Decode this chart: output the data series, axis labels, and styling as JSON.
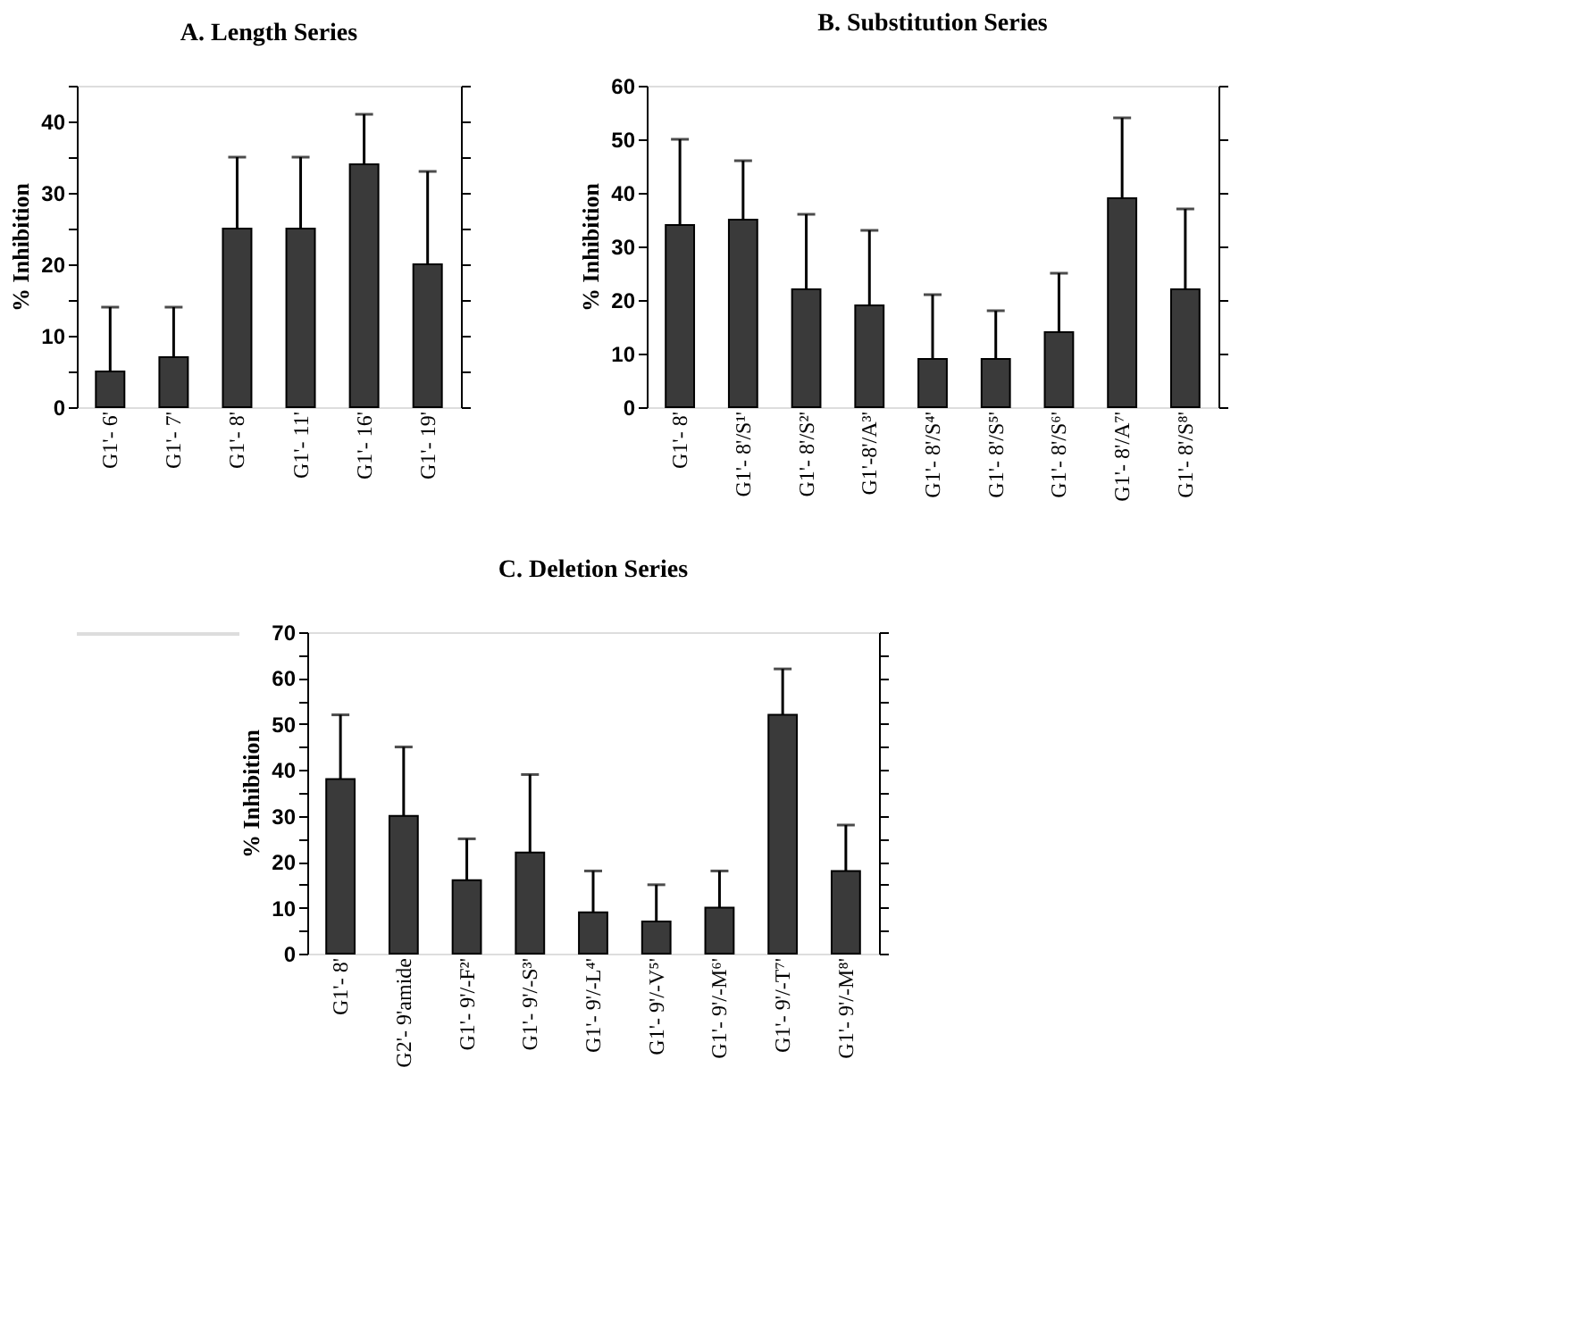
{
  "chart_data": [
    {
      "type": "bar",
      "title": "A.  Length Series",
      "ylabel": "% Inhibition",
      "categories": [
        "G1'- 6'",
        "G1'- 7'",
        "G1'- 8'",
        "G1'- 11'",
        "G1'- 16'",
        "G1'- 19'"
      ],
      "values": [
        5,
        7,
        25,
        25,
        34,
        20
      ],
      "color": "#3a3a3a",
      "errors": [
        [
          5,
          14
        ],
        [
          7,
          14
        ],
        [
          25,
          35
        ],
        [
          25,
          35
        ],
        [
          34,
          41
        ],
        [
          20,
          33
        ]
      ],
      "ylim": [
        0,
        45
      ],
      "yticks": [
        0,
        {
          "value": 5,
          "label": null
        },
        10,
        {
          "value": 15,
          "label": null
        },
        20,
        {
          "value": 25,
          "label": null
        },
        30,
        {
          "value": 35,
          "label": null
        },
        40,
        {
          "value": 45,
          "label": null
        }
      ],
      "grid": false
    },
    {
      "type": "bar",
      "title": "B.  Substitution Series",
      "ylabel": "% Inhibition",
      "categories": [
        "G1'- 8'",
        "G1'- 8'/S¹'",
        "G1'- 8'/S²'",
        "G1'-8'/A³'",
        "G1'- 8'/S⁴'",
        "G1'- 8'/S⁵'",
        "G1'- 8'/S⁶'",
        "G1'- 8'/A⁷'",
        "G1'- 8'/S⁸'"
      ],
      "values": [
        34,
        35,
        22,
        19,
        9,
        9,
        14,
        39,
        22
      ],
      "color": "#3a3a3a",
      "errors": [
        [
          34,
          50
        ],
        [
          35,
          46
        ],
        [
          22,
          36
        ],
        [
          19,
          33
        ],
        [
          9,
          21
        ],
        [
          9,
          18
        ],
        [
          14,
          25
        ],
        [
          39,
          54
        ],
        [
          22,
          37
        ]
      ],
      "ylim": [
        0,
        60
      ],
      "yticks": [
        0,
        10,
        20,
        30,
        40,
        50,
        60
      ],
      "grid": false
    },
    {
      "type": "bar",
      "title": "C.  Deletion Series",
      "ylabel": "% Inhibition",
      "categories": [
        "G1'- 8'",
        "G2'- 9'amide",
        "G1'- 9'/-F²'",
        "G1'- 9'/-S³'",
        "G1'- 9'/-L⁴'",
        "G1'- 9'/-V⁵'",
        "G1'- 9'/-M⁶'",
        "G1'- 9'/-T⁷'",
        "G1'- 9'/-M⁸'"
      ],
      "values": [
        38,
        30,
        16,
        22,
        9,
        7,
        10,
        52,
        18
      ],
      "color": "#3a3a3a",
      "errors": [
        [
          38,
          52
        ],
        [
          30,
          45
        ],
        [
          16,
          25
        ],
        [
          22,
          39
        ],
        [
          9,
          18
        ],
        [
          7,
          15
        ],
        [
          10,
          18
        ],
        [
          52,
          62
        ],
        [
          18,
          28
        ]
      ],
      "ylim": [
        0,
        70
      ],
      "yticks": [
        0,
        {
          "value": 5,
          "label": null
        },
        10,
        {
          "value": 15,
          "label": null
        },
        20,
        {
          "value": 25,
          "label": null
        },
        30,
        {
          "value": 35,
          "label": null
        },
        40,
        {
          "value": 45,
          "label": null
        },
        50,
        {
          "value": 55,
          "label": null
        },
        60,
        {
          "value": 65,
          "label": null
        },
        70
      ],
      "grid": false
    }
  ]
}
